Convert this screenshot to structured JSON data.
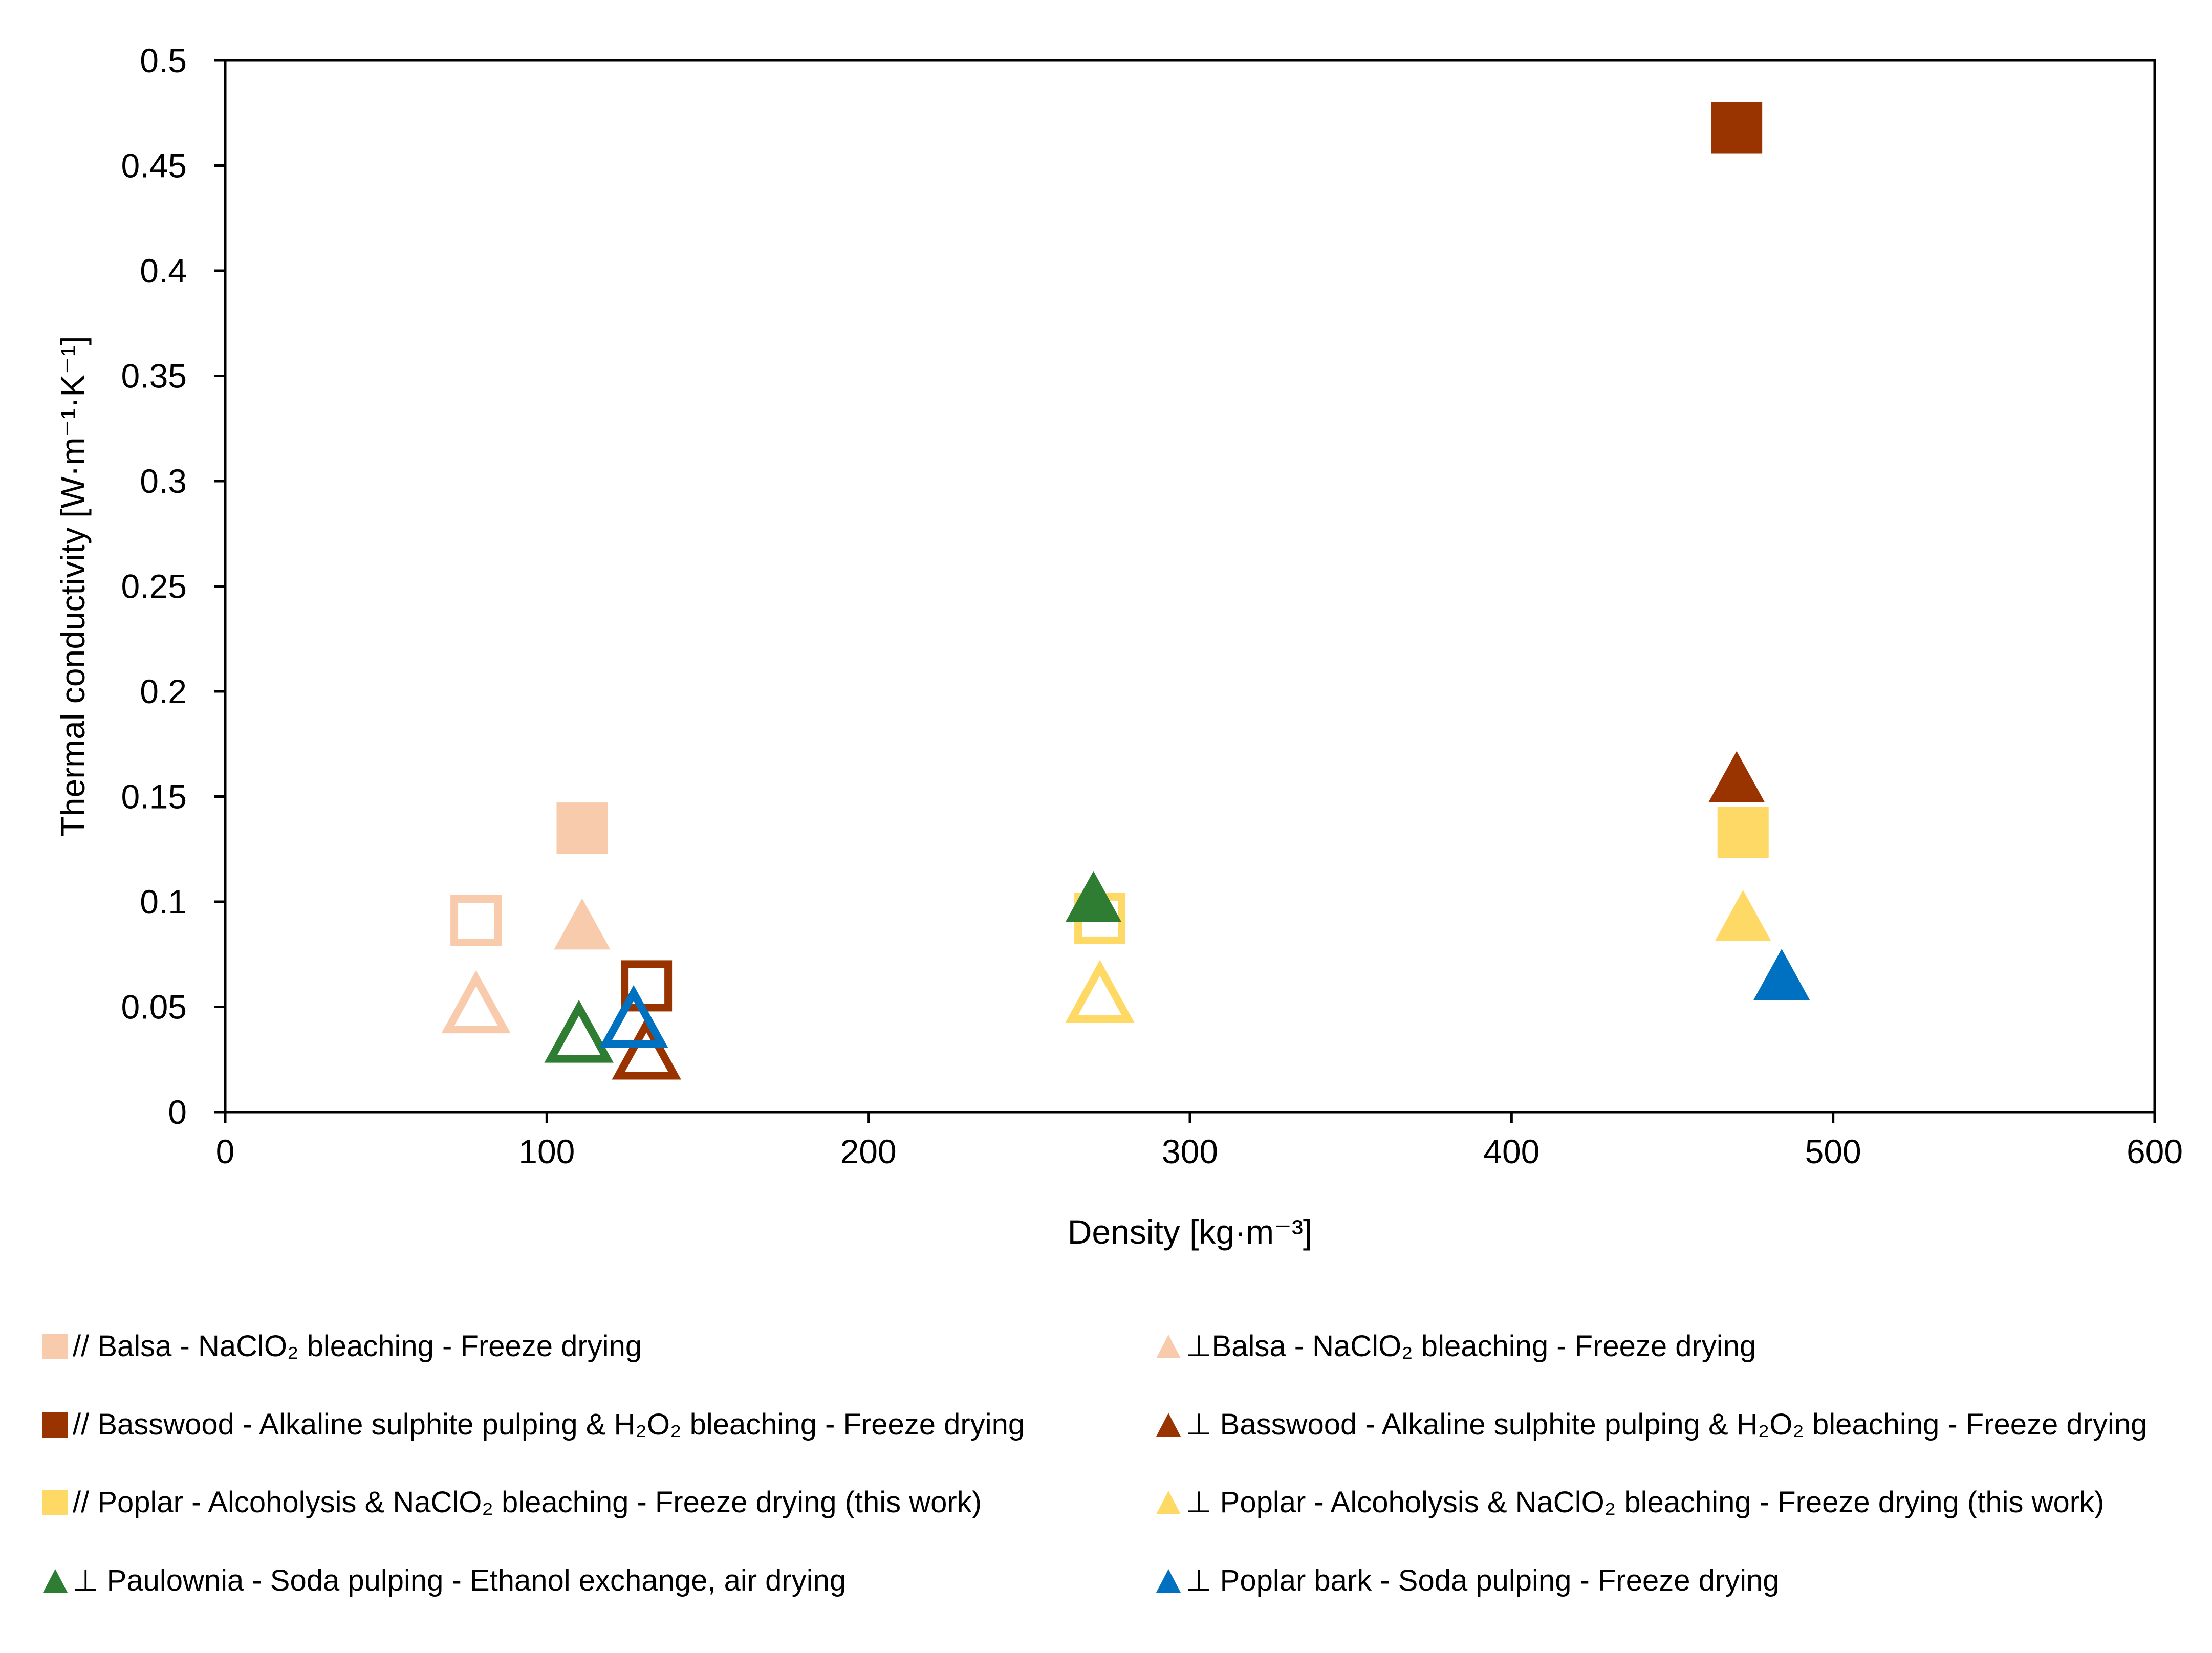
{
  "chart_data": {
    "type": "scatter",
    "xlabel": "Density  [kg·m⁻³]",
    "ylabel": "Thermal conductivity [W·m⁻¹·K⁻¹]",
    "xlim": [
      0,
      600
    ],
    "ylim": [
      0,
      0.5
    ],
    "xticks": [
      "0",
      "100",
      "200",
      "300",
      "400",
      "500",
      "600"
    ],
    "yticks": [
      "0",
      "0.05",
      "0.1",
      "0.15",
      "0.2",
      "0.25",
      "0.3",
      "0.35",
      "0.4",
      "0.45",
      "0.5"
    ],
    "grid": false,
    "legend_position": "bottom",
    "points": [
      {
        "x": 78,
        "y": 0.091,
        "marker": "square",
        "filled": false,
        "color": "#F8CBAD"
      },
      {
        "x": 111,
        "y": 0.135,
        "marker": "square",
        "filled": true,
        "color": "#F8CBAD"
      },
      {
        "x": 78,
        "y": 0.049,
        "marker": "triangle",
        "filled": false,
        "color": "#F8CBAD"
      },
      {
        "x": 111,
        "y": 0.087,
        "marker": "triangle",
        "filled": true,
        "color": "#F8CBAD"
      },
      {
        "x": 131,
        "y": 0.06,
        "marker": "square",
        "filled": false,
        "color": "#993300"
      },
      {
        "x": 470,
        "y": 0.468,
        "marker": "square",
        "filled": true,
        "color": "#993300"
      },
      {
        "x": 131,
        "y": 0.027,
        "marker": "triangle",
        "filled": false,
        "color": "#993300"
      },
      {
        "x": 470,
        "y": 0.157,
        "marker": "triangle",
        "filled": true,
        "color": "#993300"
      },
      {
        "x": 272,
        "y": 0.092,
        "marker": "square",
        "filled": false,
        "color": "#FFD966"
      },
      {
        "x": 472,
        "y": 0.133,
        "marker": "square",
        "filled": true,
        "color": "#FFD966"
      },
      {
        "x": 272,
        "y": 0.054,
        "marker": "triangle",
        "filled": false,
        "color": "#FFD966"
      },
      {
        "x": 472,
        "y": 0.091,
        "marker": "triangle",
        "filled": true,
        "color": "#FFD966"
      },
      {
        "x": 110,
        "y": 0.035,
        "marker": "triangle",
        "filled": false,
        "color": "#2E7D32"
      },
      {
        "x": 270,
        "y": 0.1,
        "marker": "triangle",
        "filled": true,
        "color": "#2E7D32"
      },
      {
        "x": 127,
        "y": 0.042,
        "marker": "triangle",
        "filled": false,
        "color": "#0070C0"
      },
      {
        "x": 484,
        "y": 0.063,
        "marker": "triangle",
        "filled": true,
        "color": "#0070C0"
      }
    ],
    "legend": [
      {
        "label": "// Balsa - NaClO₂ bleaching - Freeze drying",
        "marker": "square",
        "color": "#F8CBAD"
      },
      {
        "label": "⊥Balsa - NaClO₂ bleaching - Freeze drying",
        "marker": "triangle",
        "color": "#F8CBAD"
      },
      {
        "label": "// Basswood - Alkaline sulphite pulping & H₂O₂ bleaching - Freeze drying",
        "marker": "square",
        "color": "#993300"
      },
      {
        "label": "⊥ Basswood - Alkaline sulphite pulping & H₂O₂ bleaching - Freeze drying",
        "marker": "triangle",
        "color": "#993300"
      },
      {
        "label": "// Poplar - Alcoholysis &  NaClO₂ bleaching - Freeze drying (this work)",
        "marker": "square",
        "color": "#FFD966"
      },
      {
        "label": "⊥ Poplar - Alcoholysis &  NaClO₂ bleaching - Freeze drying (this work)",
        "marker": "triangle",
        "color": "#FFD966"
      },
      {
        "label": "⊥ Paulownia - Soda pulping - Ethanol exchange, air drying",
        "marker": "triangle",
        "color": "#2E7D32"
      },
      {
        "label": "⊥ Poplar bark - Soda pulping - Freeze drying",
        "marker": "triangle",
        "color": "#0070C0"
      }
    ]
  }
}
